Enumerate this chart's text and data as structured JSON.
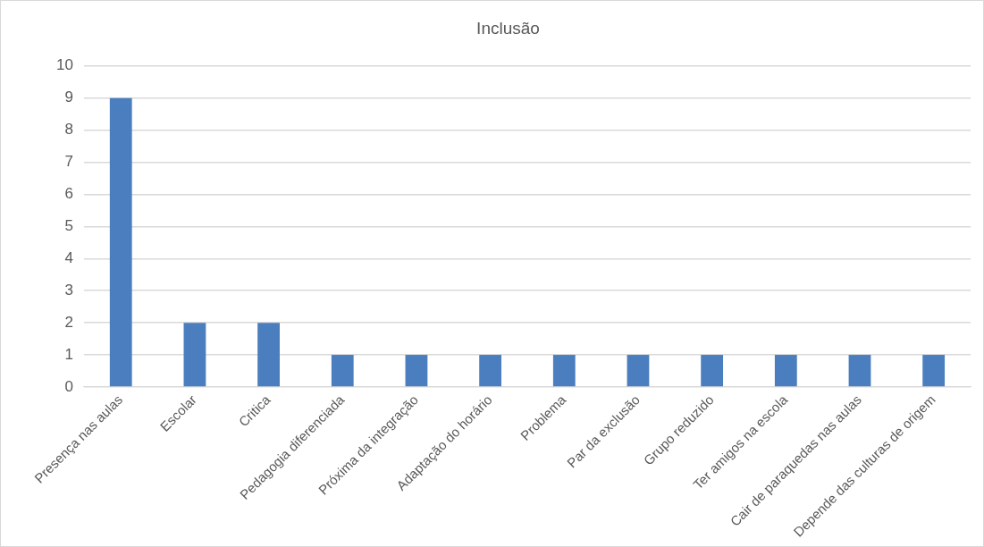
{
  "chart_data": {
    "type": "bar",
    "title": "Inclusão",
    "categories": [
      "Presença nas aulas",
      "Escolar",
      "Critica",
      "Pedagogia diferenciada",
      "Próxima da integração",
      "Adaptação do horário",
      "Problema",
      "Par da exclusão",
      "Grupo reduzido",
      "Ter amigos na escola",
      "Cair de paraquedas nas aulas",
      "Depende das culturas de origem"
    ],
    "values": [
      9,
      2,
      2,
      1,
      1,
      1,
      1,
      1,
      1,
      1,
      1,
      1
    ],
    "color": "#4a7ebf",
    "ylim": [
      0,
      10
    ],
    "yticks": [
      0,
      1,
      2,
      3,
      4,
      5,
      6,
      7,
      8,
      9,
      10
    ],
    "grid": "y",
    "legend": false
  }
}
